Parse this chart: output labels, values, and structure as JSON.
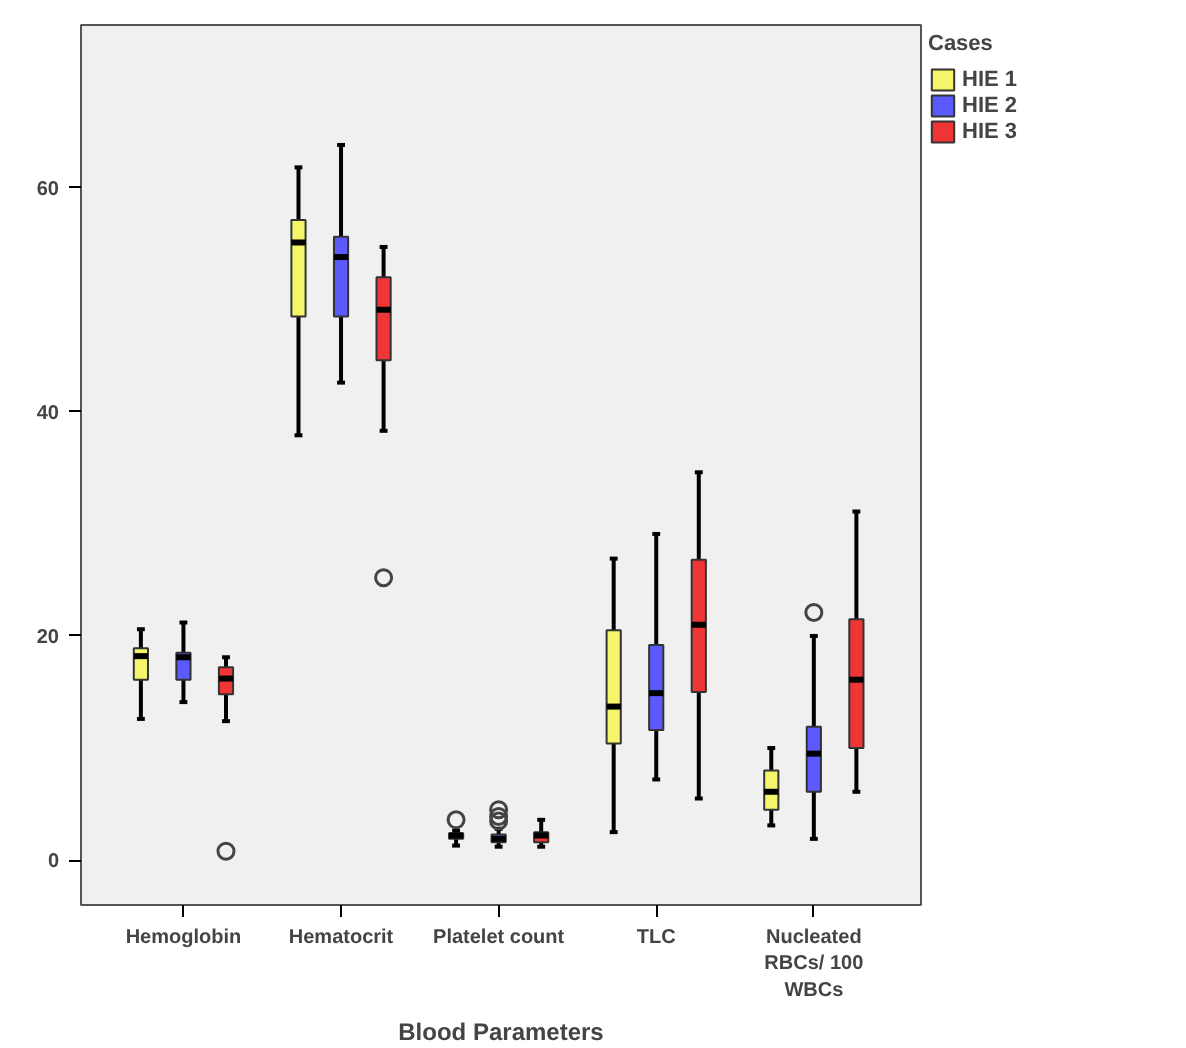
{
  "chart_data": {
    "type": "box",
    "xlabel": "Blood Parameters",
    "legend_title": "Cases",
    "legend": "right",
    "categories": [
      "Hemoglobin",
      "Hematocrit",
      "Platelet count",
      "TLC",
      "Nucleated\nRBCs/ 100\nWBCs"
    ],
    "ylim": [
      -4,
      74.5
    ],
    "yticks": [
      0,
      20,
      40,
      60
    ],
    "series": [
      {
        "name": "HIE 1",
        "color": "#f5f56b",
        "boxes": [
          {
            "low": 12.6,
            "q1": 16.1,
            "median": 18.2,
            "q3": 18.9,
            "high": 20.6
          },
          {
            "low": 37.9,
            "q1": 48.5,
            "median": 55.1,
            "q3": 57.1,
            "high": 61.8
          },
          {
            "low": 1.3,
            "q1": 1.9,
            "median": 2.2,
            "q3": 2.4,
            "high": 2.6,
            "outliers": [
              3.6
            ]
          },
          {
            "low": 2.5,
            "q1": 10.4,
            "median": 13.7,
            "q3": 20.5,
            "high": 26.9
          },
          {
            "low": 3.1,
            "q1": 4.5,
            "median": 6.1,
            "q3": 8.0,
            "high": 10.0
          }
        ]
      },
      {
        "name": "HIE 2",
        "color": "#5a5aff",
        "boxes": [
          {
            "low": 14.1,
            "q1": 16.1,
            "median": 18.1,
            "q3": 18.5,
            "high": 21.2
          },
          {
            "low": 42.6,
            "q1": 48.5,
            "median": 53.8,
            "q3": 55.6,
            "high": 63.8
          },
          {
            "low": 1.2,
            "q1": 1.6,
            "median": 1.9,
            "q3": 2.3,
            "high": 2.8,
            "outliers": [
              3.5,
              3.9,
              4.5
            ]
          },
          {
            "low": 7.2,
            "q1": 11.6,
            "median": 14.9,
            "q3": 19.2,
            "high": 29.1
          },
          {
            "low": 1.9,
            "q1": 6.1,
            "median": 9.5,
            "q3": 11.9,
            "high": 20.0,
            "outliers": [
              22.1
            ]
          }
        ]
      },
      {
        "name": "HIE 3",
        "color": "#ef3535",
        "boxes": [
          {
            "low": 12.4,
            "q1": 14.8,
            "median": 16.2,
            "q3": 17.2,
            "high": 18.1,
            "outliers": [
              0.8
            ]
          },
          {
            "low": 38.3,
            "q1": 44.6,
            "median": 49.1,
            "q3": 52.0,
            "high": 54.7,
            "outliers": [
              25.2
            ]
          },
          {
            "low": 1.2,
            "q1": 1.6,
            "median": 2.2,
            "q3": 2.5,
            "high": 3.6
          },
          {
            "low": 5.5,
            "q1": 15.0,
            "median": 21.0,
            "q3": 26.8,
            "high": 34.6
          },
          {
            "low": 6.1,
            "q1": 10.0,
            "median": 16.1,
            "q3": 21.5,
            "high": 31.1
          }
        ]
      }
    ]
  }
}
